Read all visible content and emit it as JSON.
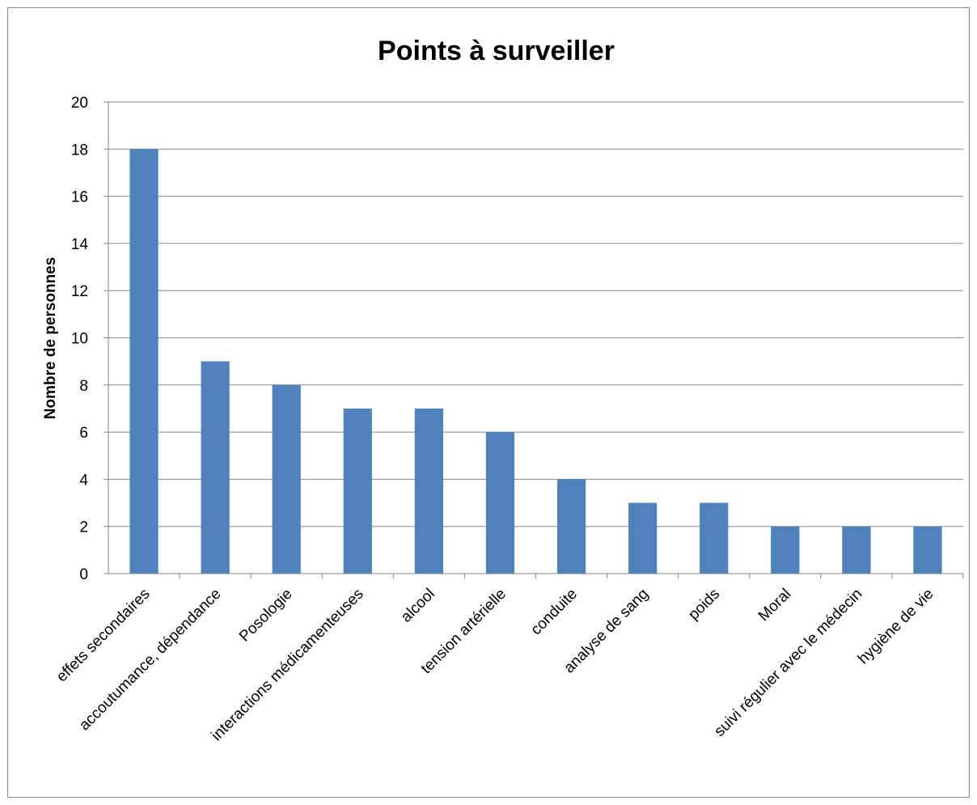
{
  "chart_data": {
    "type": "bar",
    "title": "Points à surveiller",
    "xlabel": "",
    "ylabel": "Nombre de personnes",
    "ylim": [
      0,
      20
    ],
    "yticks": [
      "0",
      "2",
      "4",
      "6",
      "8",
      "10",
      "12",
      "14",
      "16",
      "18",
      "20"
    ],
    "grid": true,
    "legend": "none",
    "bar_color": "#4f81bd",
    "categories": [
      "effets secondaires",
      "accoutumance, dépendance",
      "Posologie",
      "interactions médicamenteuses",
      "alcool",
      "tension artérielle",
      "conduite",
      "analyse de sang",
      "poids",
      "Moral",
      "suivi régulier avec le médecin",
      "hygiène de vie"
    ],
    "values": [
      18,
      9,
      8,
      7,
      7,
      6,
      4,
      3,
      3,
      2,
      2,
      2
    ]
  }
}
